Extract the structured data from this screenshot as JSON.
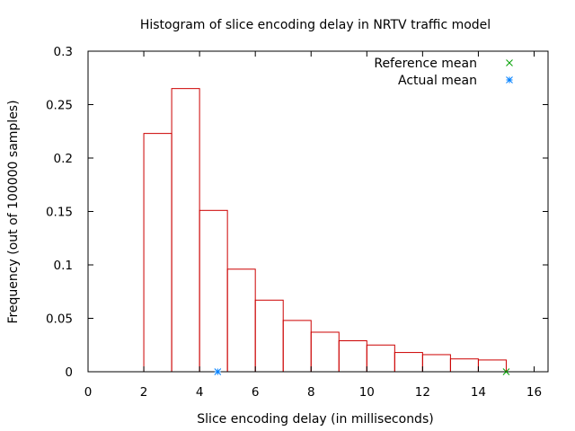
{
  "chart_data": {
    "type": "bar",
    "title": "Histogram of slice encoding delay in NRTV traffic model",
    "xlabel": "Slice encoding delay (in milliseconds)",
    "ylabel": "Frequency (out of 100000 samples)",
    "xlim": [
      0,
      16.5
    ],
    "ylim": [
      0,
      0.3
    ],
    "xticks": [
      "0",
      "2",
      "4",
      "6",
      "8",
      "10",
      "12",
      "14",
      "16"
    ],
    "yticks": [
      "0",
      "0.05",
      "0.1",
      "0.15",
      "0.2",
      "0.25",
      "0.3"
    ],
    "bin_width": 1,
    "bins": [
      {
        "x": 2,
        "value": 0.223
      },
      {
        "x": 3,
        "value": 0.265
      },
      {
        "x": 4,
        "value": 0.151
      },
      {
        "x": 5,
        "value": 0.096
      },
      {
        "x": 6,
        "value": 0.067
      },
      {
        "x": 7,
        "value": 0.048
      },
      {
        "x": 8,
        "value": 0.037
      },
      {
        "x": 9,
        "value": 0.029
      },
      {
        "x": 10,
        "value": 0.025
      },
      {
        "x": 11,
        "value": 0.018
      },
      {
        "x": 12,
        "value": 0.016
      },
      {
        "x": 13,
        "value": 0.012
      },
      {
        "x": 14,
        "value": 0.011
      }
    ],
    "markers": [
      {
        "name": "Reference mean",
        "x": 15.0,
        "y": 0,
        "symbol": "x",
        "color": "#00a000"
      },
      {
        "name": "Actual mean",
        "x": 4.65,
        "y": 0,
        "symbol": "asterisk",
        "color": "#0080ff"
      }
    ],
    "bar_color": "#cc0000",
    "legend_position": "top-right",
    "grid": false
  }
}
